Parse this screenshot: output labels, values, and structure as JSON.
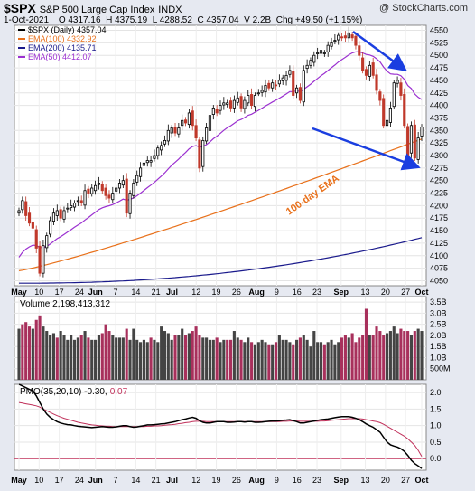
{
  "header": {
    "symbol": "$SPX",
    "name": "S&P 500 Large Cap Index",
    "exchange": "INDX",
    "date": "1-Oct-2021",
    "ohlc": "O 4317.16  H 4375.19  L 4288.52  C 4357.04  V 2.2B  Chg +49.50 (+1.15%)",
    "watermark": "@ StockCharts.com"
  },
  "legend": [
    {
      "label": "$SPX (Daily) 4357.04",
      "color": "#000000"
    },
    {
      "label": "EMA(100) 4332.92",
      "color": "#e8701a"
    },
    {
      "label": "EMA(200) 4135.71",
      "color": "#1a1a8c"
    },
    {
      "label": "EMA(50) 4412.07",
      "color": "#9b30d0"
    }
  ],
  "annotation": "100-day EMA",
  "volume_label": "Volume 2,198,413,312",
  "pmo_label": "PMO(35,20,10) -0.30,",
  "pmo_signal_value": "0.07",
  "colors": {
    "up": "#000000",
    "down": "#c0392b",
    "ema100": "#e8701a",
    "ema200": "#1a1a8c",
    "ema50": "#9b30d0",
    "arrow": "#1a3ee0",
    "vol_up": "#444444",
    "vol_down": "#a8305c",
    "pmo": "#000000",
    "pmo_signal": "#c0305a"
  },
  "chart_data": [
    {
      "type": "candlestick",
      "x_tick_labels": [
        "May",
        "10",
        "17",
        "24",
        "Jun",
        "7",
        "14",
        "21",
        "Jul",
        "12",
        "19",
        "26",
        "Aug",
        "9",
        "16",
        "23",
        "Sep",
        "13",
        "20",
        "27",
        "Oct"
      ],
      "y_tick_labels": [
        "4550",
        "4525",
        "4500",
        "4475",
        "4450",
        "4425",
        "4400",
        "4375",
        "4350",
        "4325",
        "4300",
        "4275",
        "4250",
        "4225",
        "4200",
        "4175",
        "4150",
        "4125",
        "4100",
        "4075",
        "4050"
      ],
      "ylim": [
        4040,
        4560
      ],
      "close": [
        4190,
        4210,
        4180,
        4165,
        4155,
        4115,
        4065,
        4120,
        4140,
        4170,
        4185,
        4190,
        4175,
        4190,
        4195,
        4200,
        4205,
        4210,
        4205,
        4230,
        4225,
        4235,
        4240,
        4245,
        4230,
        4220,
        4215,
        4225,
        4235,
        4245,
        4250,
        4185,
        4225,
        4245,
        4260,
        4275,
        4285,
        4290,
        4290,
        4300,
        4315,
        4320,
        4330,
        4350,
        4355,
        4345,
        4355,
        4370,
        4365,
        4385,
        4360,
        4335,
        4275,
        4330,
        4355,
        4380,
        4395,
        4385,
        4400,
        4405,
        4405,
        4395,
        4410,
        4415,
        4395,
        4410,
        4420,
        4400,
        4420,
        4425,
        4430,
        4440,
        4435,
        4445,
        4440,
        4450,
        4455,
        4460,
        4470,
        4420,
        4435,
        4410,
        4470,
        4480,
        4490,
        4500,
        4505,
        4510,
        4505,
        4520,
        4525,
        4530,
        4540,
        4535,
        4535,
        4545,
        4535,
        4520,
        4500,
        4470,
        4460,
        4480,
        4460,
        4430,
        4410,
        4360,
        4370,
        4395,
        4445,
        4450,
        4420,
        4360,
        4300,
        4360,
        4295,
        4335,
        4357
      ],
      "ema100": {
        "label": "EMA(100)",
        "start": 4070,
        "end": 4333
      },
      "ema200": {
        "label": "EMA(200)",
        "start": 4045,
        "end": 4136
      },
      "ema50": {
        "label": "EMA(50)",
        "start": 4088,
        "end": 4412
      }
    },
    {
      "type": "bar",
      "name": "Volume",
      "y_tick_labels": [
        "3.5B",
        "3.0B",
        "2.5B",
        "2.0B",
        "1.5B",
        "1.0B",
        "500M"
      ],
      "ylim": [
        0,
        3.75
      ],
      "values": [
        2.3,
        2.5,
        2.6,
        2.4,
        2.3,
        2.7,
        2.9,
        2.4,
        2.2,
        2.0,
        2.1,
        1.9,
        2.2,
        2.0,
        1.8,
        2.0,
        1.8,
        1.9,
        2.0,
        2.2,
        1.9,
        1.8,
        1.8,
        2.0,
        2.1,
        2.5,
        2.2,
        2.0,
        1.9,
        1.9,
        1.9,
        2.3,
        1.8,
        2.3,
        1.8,
        1.7,
        1.8,
        1.7,
        1.9,
        1.8,
        1.7,
        2.4,
        2.2,
        2.1,
        1.8,
        2.0,
        2.0,
        2.3,
        2.0,
        2.1,
        2.2,
        2.4,
        2.0,
        1.9,
        1.9,
        1.8,
        1.8,
        1.9,
        1.7,
        1.8,
        1.8,
        1.8,
        2.2,
        1.9,
        1.8,
        1.7,
        1.9,
        1.7,
        1.6,
        1.7,
        1.8,
        1.7,
        1.6,
        1.6,
        1.7,
        2.0,
        1.8,
        1.8,
        1.7,
        1.6,
        1.8,
        1.9,
        2.0,
        1.8,
        1.5,
        2.2,
        1.7,
        1.7,
        1.6,
        1.7,
        1.8,
        1.6,
        1.7,
        1.9,
        2.0,
        1.9,
        2.1,
        1.7,
        1.9,
        2.0,
        3.2,
        2.0,
        2.0,
        2.4,
        2.2,
        2.0,
        2.1,
        2.2,
        2.4,
        2.1,
        2.3,
        2.2,
        2.2,
        2.0,
        2.2,
        2.3,
        2.2
      ],
      "ups": [
        1,
        0,
        0,
        0,
        1,
        0,
        0,
        1,
        1,
        1,
        1,
        0,
        1,
        1,
        1,
        1,
        1,
        1,
        0,
        1,
        0,
        1,
        1,
        1,
        0,
        0,
        0,
        1,
        1,
        1,
        1,
        0,
        1,
        1,
        1,
        1,
        1,
        1,
        0,
        1,
        1,
        1,
        1,
        1,
        1,
        0,
        1,
        1,
        0,
        1,
        0,
        0,
        0,
        1,
        1,
        1,
        1,
        0,
        1,
        1,
        0,
        0,
        1,
        1,
        0,
        1,
        1,
        0,
        1,
        1,
        1,
        1,
        0,
        1,
        0,
        1,
        1,
        1,
        1,
        0,
        1,
        0,
        1,
        1,
        1,
        1,
        1,
        1,
        0,
        1,
        1,
        1,
        1,
        0,
        0,
        1,
        0,
        0,
        0,
        0,
        0,
        1,
        0,
        0,
        0,
        0,
        1,
        1,
        1,
        1,
        0,
        0,
        0,
        1,
        0,
        1,
        1
      ]
    },
    {
      "type": "line",
      "name": "PMO(35,20,10)",
      "y_tick_labels": [
        "2.0",
        "1.5",
        "1.0",
        "0.5",
        "0.0"
      ],
      "ylim": [
        -0.35,
        2.25
      ],
      "x_tick_labels": [
        "May",
        "10",
        "17",
        "24",
        "Jun",
        "7",
        "14",
        "21",
        "Jul",
        "12",
        "19",
        "26",
        "Aug",
        "9",
        "16",
        "23",
        "Sep",
        "13",
        "20",
        "27",
        "Oct"
      ],
      "pmo": [
        2.25,
        2.2,
        2.15,
        2.1,
        2.05,
        1.9,
        1.7,
        1.5,
        1.35,
        1.25,
        1.18,
        1.12,
        1.08,
        1.05,
        1.03,
        1.02,
        1.0,
        0.98,
        0.97,
        0.96,
        0.95,
        0.94,
        0.95,
        0.96,
        0.97,
        0.96,
        0.95,
        0.95,
        0.96,
        0.98,
        1.0,
        1.0,
        0.97,
        0.95,
        0.96,
        0.98,
        1.0,
        1.02,
        1.02,
        1.03,
        1.04,
        1.05,
        1.06,
        1.08,
        1.1,
        1.12,
        1.15,
        1.18,
        1.2,
        1.23,
        1.25,
        1.22,
        1.15,
        1.1,
        1.08,
        1.08,
        1.1,
        1.12,
        1.12,
        1.12,
        1.1,
        1.1,
        1.11,
        1.12,
        1.12,
        1.11,
        1.12,
        1.12,
        1.1,
        1.1,
        1.11,
        1.12,
        1.13,
        1.14,
        1.14,
        1.15,
        1.16,
        1.17,
        1.18,
        1.15,
        1.12,
        1.08,
        1.08,
        1.1,
        1.12,
        1.14,
        1.16,
        1.18,
        1.19,
        1.2,
        1.22,
        1.24,
        1.26,
        1.27,
        1.27,
        1.27,
        1.25,
        1.22,
        1.18,
        1.12,
        1.05,
        1.0,
        0.95,
        0.88,
        0.8,
        0.65,
        0.5,
        0.42,
        0.38,
        0.35,
        0.3,
        0.22,
        0.1,
        -0.05,
        -0.15,
        -0.22,
        -0.3
      ],
      "signal": [
        1.7,
        1.68,
        1.66,
        1.64,
        1.62,
        1.6,
        1.56,
        1.5,
        1.45,
        1.4,
        1.35,
        1.3,
        1.26,
        1.22,
        1.19,
        1.16,
        1.13,
        1.1,
        1.08,
        1.06,
        1.04,
        1.02,
        1.01,
        1.0,
        0.99,
        0.98,
        0.98,
        0.97,
        0.97,
        0.97,
        0.97,
        0.97,
        0.97,
        0.97,
        0.97,
        0.97,
        0.97,
        0.98,
        0.98,
        0.99,
        0.99,
        1.0,
        1.01,
        1.02,
        1.03,
        1.04,
        1.06,
        1.07,
        1.09,
        1.1,
        1.12,
        1.13,
        1.13,
        1.13,
        1.12,
        1.12,
        1.12,
        1.12,
        1.12,
        1.12,
        1.12,
        1.12,
        1.12,
        1.12,
        1.12,
        1.12,
        1.12,
        1.12,
        1.12,
        1.12,
        1.12,
        1.12,
        1.12,
        1.12,
        1.12,
        1.12,
        1.13,
        1.13,
        1.14,
        1.14,
        1.14,
        1.13,
        1.13,
        1.13,
        1.13,
        1.13,
        1.13,
        1.14,
        1.14,
        1.15,
        1.16,
        1.17,
        1.18,
        1.19,
        1.2,
        1.21,
        1.21,
        1.21,
        1.21,
        1.2,
        1.18,
        1.16,
        1.14,
        1.12,
        1.09,
        1.04,
        0.98,
        0.92,
        0.86,
        0.8,
        0.74,
        0.68,
        0.6,
        0.5,
        0.4,
        0.25,
        0.07
      ]
    }
  ]
}
